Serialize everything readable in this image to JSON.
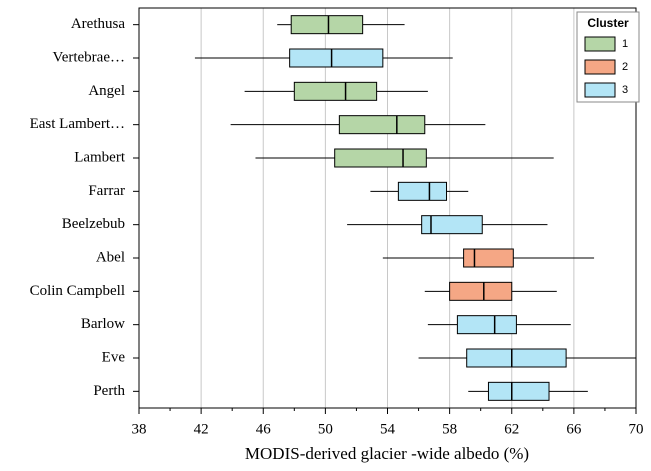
{
  "chart_data": {
    "type": "boxplot",
    "xlabel": "MODIS-derived glacier -wide albedo (%)",
    "categories": [
      "Arethusa",
      "Vertebrae…",
      "Angel",
      "East Lambert…",
      "Lambert",
      "Farrar",
      "Beelzebub",
      "Abel",
      "Colin Campbell",
      "Barlow",
      "Eve",
      "Perth"
    ],
    "boxes": [
      {
        "cluster": "1",
        "min": 46.9,
        "q1": 47.8,
        "median": 50.2,
        "q3": 52.4,
        "max": 55.1
      },
      {
        "cluster": "3",
        "min": 41.6,
        "q1": 47.7,
        "median": 50.4,
        "q3": 53.7,
        "max": 58.2
      },
      {
        "cluster": "1",
        "min": 44.8,
        "q1": 48.0,
        "median": 51.3,
        "q3": 53.3,
        "max": 56.6
      },
      {
        "cluster": "1",
        "min": 43.9,
        "q1": 50.9,
        "median": 54.6,
        "q3": 56.4,
        "max": 60.3
      },
      {
        "cluster": "1",
        "min": 45.5,
        "q1": 50.6,
        "median": 55.0,
        "q3": 56.5,
        "max": 64.7
      },
      {
        "cluster": "3",
        "min": 52.9,
        "q1": 54.7,
        "median": 56.7,
        "q3": 57.8,
        "max": 59.2
      },
      {
        "cluster": "3",
        "min": 51.4,
        "q1": 56.2,
        "median": 56.8,
        "q3": 60.1,
        "max": 64.3
      },
      {
        "cluster": "2",
        "min": 53.7,
        "q1": 58.9,
        "median": 59.6,
        "q3": 62.1,
        "max": 67.3
      },
      {
        "cluster": "2",
        "min": 56.4,
        "q1": 58.0,
        "median": 60.2,
        "q3": 62.0,
        "max": 64.9
      },
      {
        "cluster": "3",
        "min": 56.6,
        "q1": 58.5,
        "median": 60.9,
        "q3": 62.3,
        "max": 65.8
      },
      {
        "cluster": "3",
        "min": 56.0,
        "q1": 59.1,
        "median": 62.0,
        "q3": 65.5,
        "max": 70.0
      },
      {
        "cluster": "3",
        "min": 59.2,
        "q1": 60.5,
        "median": 62.0,
        "q3": 64.4,
        "max": 66.9
      }
    ],
    "series": [
      {
        "name": "1",
        "color": "#b5d6a7"
      },
      {
        "name": "2",
        "color": "#f5a785"
      },
      {
        "name": "3",
        "color": "#b3e5f6"
      }
    ],
    "legend_title": "Cluster",
    "legend": "upper right",
    "xlim": [
      38,
      70
    ],
    "xticks": [
      38,
      42,
      46,
      50,
      54,
      58,
      62,
      66,
      70
    ],
    "xminorticks": [
      40,
      44,
      48,
      52,
      56,
      60,
      64,
      68
    ],
    "grid": true
  }
}
